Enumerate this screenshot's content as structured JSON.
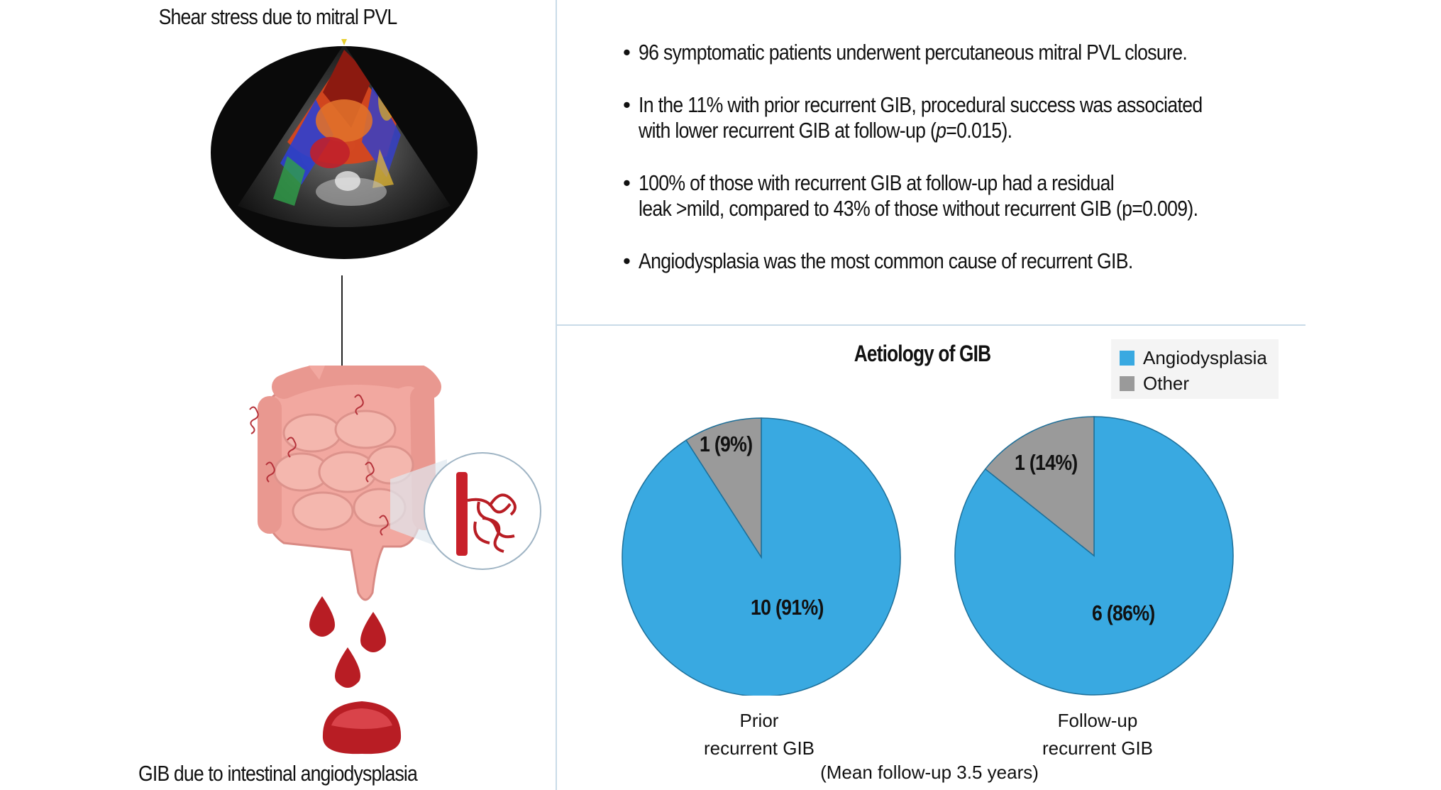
{
  "left_panel": {
    "title": "Shear stress due to mitral PVL",
    "caption": "GIB due to intestinal angiodysplasia"
  },
  "bullets": [
    {
      "text": "96 symptomatic patients underwent percutaneous mitral PVL closure."
    },
    {
      "line1_pre": "In the 11% with prior recurrent GIB, procedural success was associated",
      "line2_pre": "with lower recurrent GIB at follow-up (",
      "line2_italic": "p",
      "line2_post": "=0.015)."
    },
    {
      "line1": "100% of those with recurrent GIB at follow-up had a residual",
      "line2": "leak >mild, compared to 43% of those without recurrent GIB (p=0.009)."
    },
    {
      "text": "Angiodysplasia was the most common cause of recurrent GIB."
    }
  ],
  "bullet_symbol": "•",
  "colors": {
    "angiodysplasia": "#39a9e1",
    "other": "#9a9a9a",
    "divider": "#c9dbe8",
    "blood": "#b81d24"
  },
  "chart_data": [
    {
      "type": "pie",
      "title": "Aetiology of GIB",
      "legend": {
        "position": "top-right",
        "entries": [
          "Angiodysplasia",
          "Other"
        ]
      },
      "categories": [
        "Angiodysplasia",
        "Other"
      ],
      "values": [
        10,
        1
      ],
      "labels": [
        "10 (91%)",
        "1 (9%)"
      ],
      "label_line1": "Prior",
      "label_line2": "recurrent GIB"
    },
    {
      "type": "pie",
      "categories": [
        "Angiodysplasia",
        "Other"
      ],
      "values": [
        6,
        1
      ],
      "labels": [
        "6 (86%)",
        "1 (14%)"
      ],
      "label_line1": "Follow-up",
      "label_line2": "recurrent GIB"
    }
  ],
  "footnote": "(Mean follow-up 3.5 years)"
}
